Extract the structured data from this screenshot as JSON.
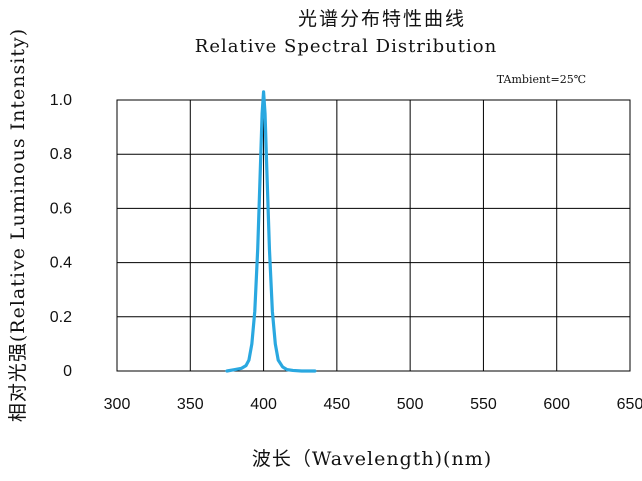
{
  "chart_data": {
    "type": "line",
    "title": "光谱分布特性曲线",
    "subtitle": "Relative Spectral Distribution",
    "annotation": "TAmbient=25℃",
    "xlabel": "波长（Wavelength)(nm)",
    "ylabel": "相对光强(Relative Luminous Intensity)",
    "xlim": [
      300,
      650
    ],
    "ylim": [
      0,
      1.0
    ],
    "x_ticks": [
      "300",
      "350",
      "400",
      "450",
      "500",
      "550",
      "600",
      "650"
    ],
    "y_ticks": [
      "0",
      "0.2",
      "0.4",
      "0.6",
      "0.8",
      "1.0"
    ],
    "grid": true,
    "line_color": "#2aa8e0",
    "series": [
      {
        "x": [
          375,
          380,
          385,
          388,
          390,
          392,
          394,
          396,
          398,
          399,
          400,
          401,
          402,
          404,
          406,
          408,
          410,
          413,
          416,
          420,
          426,
          435
        ],
        "y": [
          0.0,
          0.005,
          0.01,
          0.02,
          0.04,
          0.1,
          0.22,
          0.45,
          0.78,
          0.95,
          1.03,
          0.95,
          0.78,
          0.45,
          0.22,
          0.1,
          0.04,
          0.015,
          0.005,
          0.002,
          0.0,
          0.0
        ]
      }
    ]
  }
}
